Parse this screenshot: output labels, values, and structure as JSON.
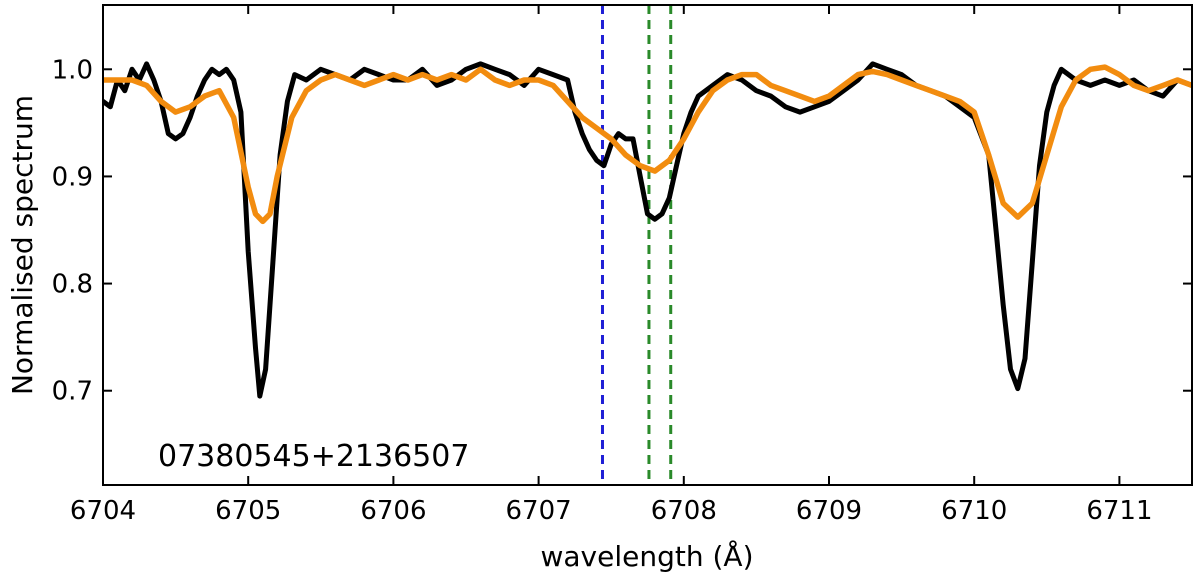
{
  "chart_data": {
    "type": "line",
    "title": "",
    "xlabel": "wavelength (Å)",
    "ylabel": "Normalised spectrum",
    "xlim": [
      6704,
      6711.5
    ],
    "ylim": [
      0.612,
      1.06
    ],
    "xticks": [
      6704,
      6705,
      6706,
      6707,
      6708,
      6709,
      6710,
      6711
    ],
    "yticks": [
      0.7,
      0.8,
      0.9,
      1.0
    ],
    "grid": false,
    "annotation": "07380545+2136507",
    "vlines": [
      {
        "x": 6707.44,
        "color": "#1f1fd6"
      },
      {
        "x": 6707.76,
        "color": "#2a8a2a"
      },
      {
        "x": 6707.91,
        "color": "#2a8a2a"
      }
    ],
    "series": [
      {
        "color": "#000000",
        "points": [
          [
            6704.0,
            0.97
          ],
          [
            6704.05,
            0.965
          ],
          [
            6704.1,
            0.99
          ],
          [
            6704.15,
            0.98
          ],
          [
            6704.2,
            1.0
          ],
          [
            6704.25,
            0.99
          ],
          [
            6704.3,
            1.005
          ],
          [
            6704.35,
            0.99
          ],
          [
            6704.4,
            0.97
          ],
          [
            6704.45,
            0.94
          ],
          [
            6704.5,
            0.935
          ],
          [
            6704.55,
            0.94
          ],
          [
            6704.6,
            0.955
          ],
          [
            6704.65,
            0.975
          ],
          [
            6704.7,
            0.99
          ],
          [
            6704.75,
            1.0
          ],
          [
            6704.8,
            0.995
          ],
          [
            6704.85,
            1.0
          ],
          [
            6704.9,
            0.99
          ],
          [
            6704.95,
            0.96
          ],
          [
            6705.0,
            0.83
          ],
          [
            6705.05,
            0.74
          ],
          [
            6705.08,
            0.695
          ],
          [
            6705.12,
            0.72
          ],
          [
            6705.17,
            0.82
          ],
          [
            6705.22,
            0.92
          ],
          [
            6705.27,
            0.97
          ],
          [
            6705.32,
            0.995
          ],
          [
            6705.4,
            0.99
          ],
          [
            6705.5,
            1.0
          ],
          [
            6705.6,
            0.995
          ],
          [
            6705.7,
            0.99
          ],
          [
            6705.8,
            1.0
          ],
          [
            6705.9,
            0.995
          ],
          [
            6706.0,
            0.99
          ],
          [
            6706.1,
            0.99
          ],
          [
            6706.2,
            1.0
          ],
          [
            6706.3,
            0.985
          ],
          [
            6706.4,
            0.99
          ],
          [
            6706.5,
            1.0
          ],
          [
            6706.6,
            1.005
          ],
          [
            6706.7,
            1.0
          ],
          [
            6706.8,
            0.995
          ],
          [
            6706.9,
            0.985
          ],
          [
            6707.0,
            1.0
          ],
          [
            6707.1,
            0.995
          ],
          [
            6707.2,
            0.99
          ],
          [
            6707.25,
            0.96
          ],
          [
            6707.3,
            0.94
          ],
          [
            6707.35,
            0.925
          ],
          [
            6707.4,
            0.915
          ],
          [
            6707.45,
            0.91
          ],
          [
            6707.5,
            0.93
          ],
          [
            6707.55,
            0.94
          ],
          [
            6707.6,
            0.935
          ],
          [
            6707.65,
            0.935
          ],
          [
            6707.7,
            0.9
          ],
          [
            6707.75,
            0.865
          ],
          [
            6707.8,
            0.86
          ],
          [
            6707.85,
            0.865
          ],
          [
            6707.9,
            0.88
          ],
          [
            6707.95,
            0.91
          ],
          [
            6708.0,
            0.94
          ],
          [
            6708.05,
            0.96
          ],
          [
            6708.1,
            0.975
          ],
          [
            6708.2,
            0.985
          ],
          [
            6708.3,
            0.995
          ],
          [
            6708.4,
            0.99
          ],
          [
            6708.5,
            0.98
          ],
          [
            6708.6,
            0.975
          ],
          [
            6708.7,
            0.965
          ],
          [
            6708.8,
            0.96
          ],
          [
            6708.9,
            0.965
          ],
          [
            6709.0,
            0.97
          ],
          [
            6709.1,
            0.98
          ],
          [
            6709.2,
            0.99
          ],
          [
            6709.3,
            1.005
          ],
          [
            6709.4,
            1.0
          ],
          [
            6709.5,
            0.995
          ],
          [
            6709.6,
            0.985
          ],
          [
            6709.7,
            0.98
          ],
          [
            6709.8,
            0.975
          ],
          [
            6709.9,
            0.965
          ],
          [
            6710.0,
            0.955
          ],
          [
            6710.1,
            0.92
          ],
          [
            6710.15,
            0.85
          ],
          [
            6710.2,
            0.78
          ],
          [
            6710.25,
            0.72
          ],
          [
            6710.3,
            0.702
          ],
          [
            6710.35,
            0.73
          ],
          [
            6710.4,
            0.82
          ],
          [
            6710.45,
            0.91
          ],
          [
            6710.5,
            0.96
          ],
          [
            6710.55,
            0.985
          ],
          [
            6710.6,
            1.0
          ],
          [
            6710.7,
            0.99
          ],
          [
            6710.8,
            0.985
          ],
          [
            6710.9,
            0.99
          ],
          [
            6711.0,
            0.985
          ],
          [
            6711.1,
            0.99
          ],
          [
            6711.2,
            0.98
          ],
          [
            6711.3,
            0.975
          ],
          [
            6711.4,
            0.99
          ],
          [
            6711.5,
            0.985
          ]
        ]
      },
      {
        "color": "#f28c0f",
        "points": [
          [
            6704.0,
            0.99
          ],
          [
            6704.1,
            0.99
          ],
          [
            6704.2,
            0.99
          ],
          [
            6704.3,
            0.985
          ],
          [
            6704.4,
            0.97
          ],
          [
            6704.5,
            0.96
          ],
          [
            6704.6,
            0.965
          ],
          [
            6704.7,
            0.975
          ],
          [
            6704.8,
            0.98
          ],
          [
            6704.9,
            0.955
          ],
          [
            6705.0,
            0.89
          ],
          [
            6705.05,
            0.865
          ],
          [
            6705.1,
            0.858
          ],
          [
            6705.15,
            0.865
          ],
          [
            6705.2,
            0.9
          ],
          [
            6705.3,
            0.955
          ],
          [
            6705.4,
            0.98
          ],
          [
            6705.5,
            0.99
          ],
          [
            6705.6,
            0.995
          ],
          [
            6705.7,
            0.99
          ],
          [
            6705.8,
            0.985
          ],
          [
            6705.9,
            0.99
          ],
          [
            6706.0,
            0.995
          ],
          [
            6706.1,
            0.99
          ],
          [
            6706.2,
            0.995
          ],
          [
            6706.3,
            0.99
          ],
          [
            6706.4,
            0.995
          ],
          [
            6706.5,
            0.99
          ],
          [
            6706.6,
            1.0
          ],
          [
            6706.7,
            0.99
          ],
          [
            6706.8,
            0.985
          ],
          [
            6706.9,
            0.99
          ],
          [
            6707.0,
            0.99
          ],
          [
            6707.1,
            0.985
          ],
          [
            6707.2,
            0.97
          ],
          [
            6707.3,
            0.955
          ],
          [
            6707.4,
            0.945
          ],
          [
            6707.5,
            0.935
          ],
          [
            6707.6,
            0.92
          ],
          [
            6707.7,
            0.91
          ],
          [
            6707.8,
            0.905
          ],
          [
            6707.9,
            0.915
          ],
          [
            6708.0,
            0.935
          ],
          [
            6708.1,
            0.96
          ],
          [
            6708.2,
            0.98
          ],
          [
            6708.3,
            0.99
          ],
          [
            6708.4,
            0.995
          ],
          [
            6708.5,
            0.995
          ],
          [
            6708.6,
            0.985
          ],
          [
            6708.7,
            0.98
          ],
          [
            6708.8,
            0.975
          ],
          [
            6708.9,
            0.97
          ],
          [
            6709.0,
            0.975
          ],
          [
            6709.1,
            0.985
          ],
          [
            6709.2,
            0.995
          ],
          [
            6709.3,
            0.998
          ],
          [
            6709.4,
            0.995
          ],
          [
            6709.5,
            0.99
          ],
          [
            6709.6,
            0.985
          ],
          [
            6709.7,
            0.98
          ],
          [
            6709.8,
            0.975
          ],
          [
            6709.9,
            0.97
          ],
          [
            6710.0,
            0.96
          ],
          [
            6710.1,
            0.92
          ],
          [
            6710.2,
            0.875
          ],
          [
            6710.3,
            0.862
          ],
          [
            6710.4,
            0.875
          ],
          [
            6710.5,
            0.92
          ],
          [
            6710.6,
            0.965
          ],
          [
            6710.7,
            0.99
          ],
          [
            6710.8,
            1.0
          ],
          [
            6710.9,
            1.002
          ],
          [
            6711.0,
            0.995
          ],
          [
            6711.1,
            0.985
          ],
          [
            6711.2,
            0.98
          ],
          [
            6711.3,
            0.985
          ],
          [
            6711.4,
            0.99
          ],
          [
            6711.5,
            0.985
          ]
        ]
      }
    ]
  }
}
